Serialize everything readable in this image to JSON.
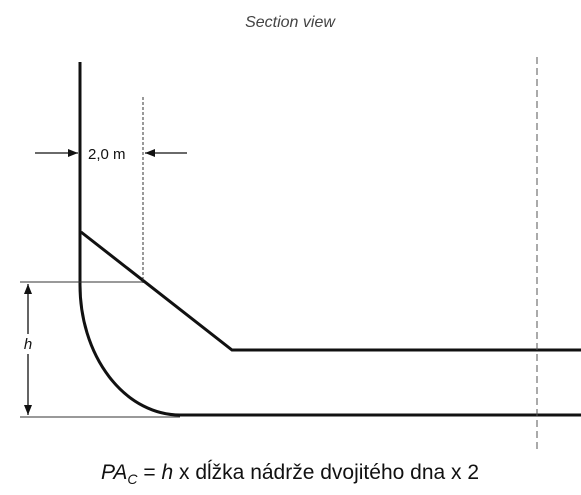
{
  "header": {
    "title": "Section view"
  },
  "dimensions": {
    "width_label": "2,0 m",
    "height_label": "h"
  },
  "caption": {
    "symbol": "PA",
    "subscript": "C",
    "equals": " = ",
    "variable": "h",
    "rest": " x dĺžka nádrže dvojitého dna x 2"
  }
}
